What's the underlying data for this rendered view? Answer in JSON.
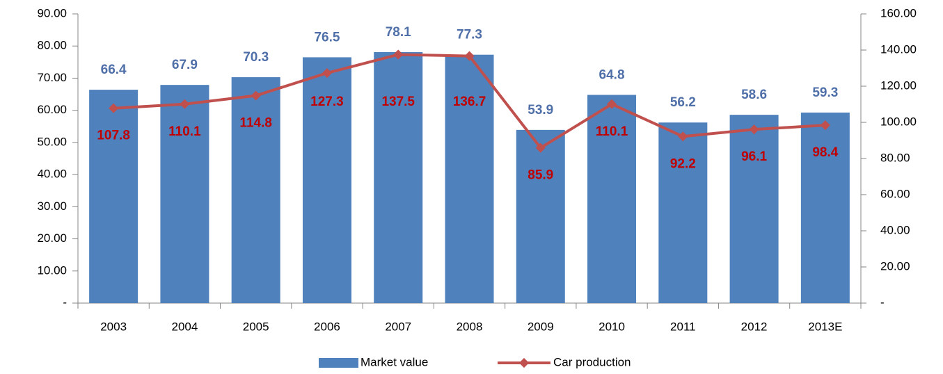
{
  "chart_data": {
    "type": "bar",
    "categories": [
      "2003",
      "2004",
      "2005",
      "2006",
      "2007",
      "2008",
      "2009",
      "2010",
      "2011",
      "2012",
      "2013E"
    ],
    "series": [
      {
        "name": "Market value",
        "color": "#4f81bd",
        "values": [
          66.4,
          67.9,
          70.3,
          76.5,
          78.1,
          77.3,
          53.9,
          64.8,
          56.2,
          58.6,
          59.3
        ]
      },
      {
        "name": "Car production",
        "color": "#c0504d",
        "type": "line",
        "axis": "y2",
        "values": [
          107.8,
          110.1,
          114.8,
          127.3,
          137.5,
          136.7,
          85.9,
          110.1,
          92.2,
          96.1,
          98.4
        ]
      }
    ],
    "ylim": [
      0,
      90
    ],
    "yticks": [
      {
        "value": 0,
        "label": "-"
      },
      {
        "value": 10,
        "label": "10.00"
      },
      {
        "value": 20,
        "label": "20.00"
      },
      {
        "value": 30,
        "label": "30.00"
      },
      {
        "value": 40,
        "label": "40.00"
      },
      {
        "value": 50,
        "label": "50.00"
      },
      {
        "value": 60,
        "label": "60.00"
      },
      {
        "value": 70,
        "label": "70.00"
      },
      {
        "value": 80,
        "label": "80.00"
      },
      {
        "value": 90,
        "label": "90.00"
      }
    ],
    "y2lim": [
      0,
      160
    ],
    "y2ticks": [
      {
        "value": 0,
        "label": "-"
      },
      {
        "value": 20,
        "label": "20.00"
      },
      {
        "value": 40,
        "label": "40.00"
      },
      {
        "value": 60,
        "label": "60.00"
      },
      {
        "value": 80,
        "label": "80.00"
      },
      {
        "value": 100,
        "label": "100.00"
      },
      {
        "value": 120,
        "label": "120.00"
      },
      {
        "value": 140,
        "label": "140.00"
      },
      {
        "value": 160,
        "label": "160.00"
      }
    ],
    "grid": false,
    "legend": "bottom"
  }
}
